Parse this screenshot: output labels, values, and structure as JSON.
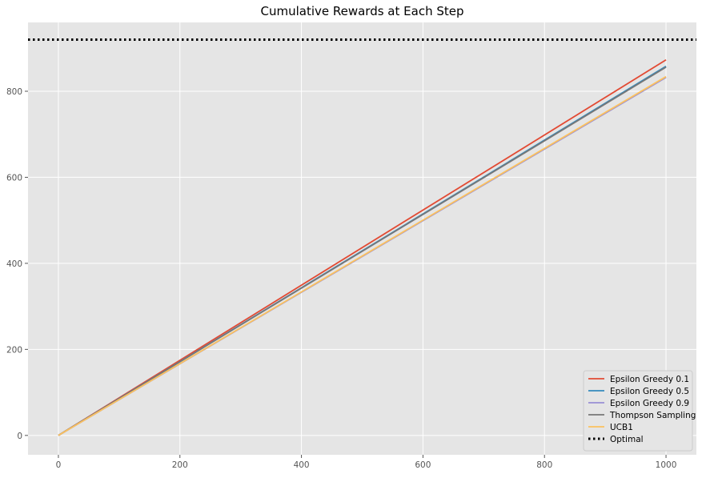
{
  "chart_data": {
    "type": "line",
    "title": "Cumulative Rewards at Each Step",
    "xlabel": "",
    "ylabel": "",
    "xlim": [
      -50,
      1050
    ],
    "ylim": [
      -45,
      960
    ],
    "xticks": [
      0,
      200,
      400,
      600,
      800,
      1000
    ],
    "yticks": [
      0,
      200,
      400,
      600,
      800
    ],
    "grid": true,
    "legend_position": "lower-right",
    "series": [
      {
        "name": "Epsilon Greedy 0.1",
        "color": "#E24A33",
        "x": [
          0,
          1000
        ],
        "y": [
          0,
          873
        ]
      },
      {
        "name": "Epsilon Greedy 0.5",
        "color": "#348ABD",
        "x": [
          0,
          1000
        ],
        "y": [
          0,
          858
        ]
      },
      {
        "name": "Epsilon Greedy 0.9",
        "color": "#988ED5",
        "x": [
          0,
          1000
        ],
        "y": [
          0,
          832
        ]
      },
      {
        "name": "Thompson Sampling",
        "color": "#777777",
        "x": [
          0,
          1000
        ],
        "y": [
          0,
          856
        ]
      },
      {
        "name": "UCB1",
        "color": "#FBC15E",
        "x": [
          0,
          1000
        ],
        "y": [
          0,
          834
        ]
      }
    ],
    "reference_lines": [
      {
        "name": "Optimal",
        "color": "#000000",
        "style": "dotted",
        "y": 920
      }
    ]
  }
}
